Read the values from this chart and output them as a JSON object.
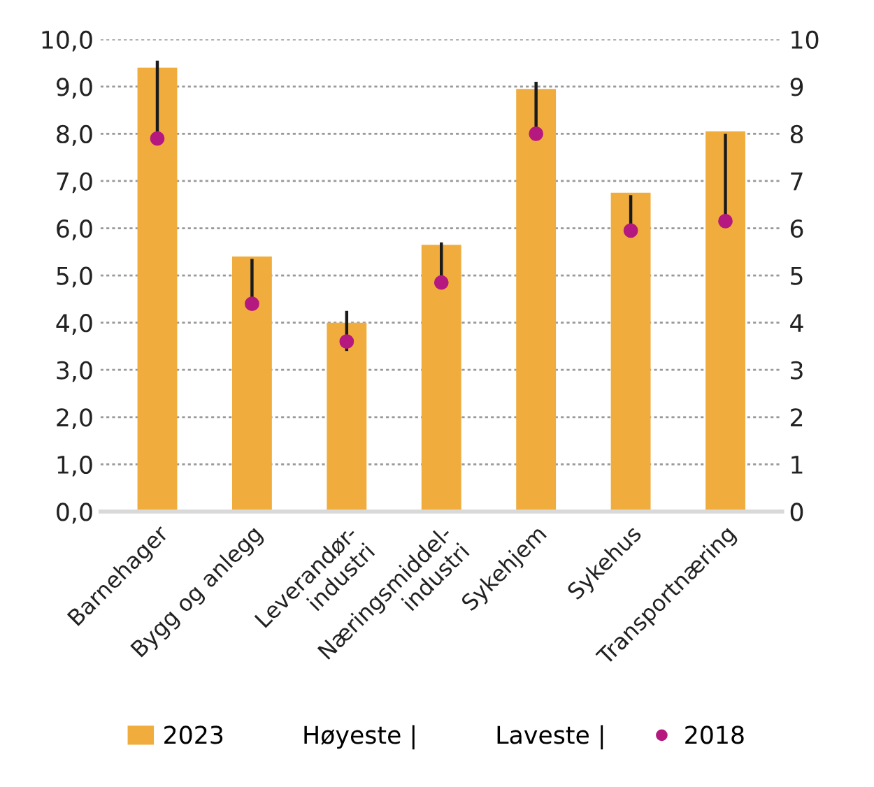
{
  "chart_data": {
    "type": "bar",
    "categories": [
      "Barnehager",
      "Bygg og anlegg",
      "Leverandør-\nindustri",
      "Næringsmiddel-\nindustri",
      "Sykehjem",
      "Sykehus",
      "Transportnæring"
    ],
    "series": [
      {
        "name": "2023",
        "color": "#f0ad3e",
        "values": [
          9.4,
          5.4,
          4.0,
          5.65,
          8.95,
          6.75,
          8.05
        ]
      },
      {
        "name": "2018",
        "type": "scatter",
        "color": "#b5197f",
        "marker": "circle",
        "values": [
          7.9,
          4.4,
          3.6,
          4.85,
          8.0,
          5.95,
          6.15
        ],
        "errors": [
          [
            7.9,
            9.55
          ],
          [
            4.4,
            5.35
          ],
          [
            3.4,
            4.25
          ],
          [
            4.85,
            5.7
          ],
          [
            8.0,
            9.1
          ],
          [
            5.95,
            6.7
          ],
          [
            6.15,
            8.0
          ]
        ]
      }
    ],
    "annotations": [
      "Høyeste |",
      "Laveste |"
    ],
    "ylim": [
      0,
      10
    ],
    "yticks": [
      {
        "value": 0,
        "label": "0,0"
      },
      {
        "value": 1,
        "label": "1,0"
      },
      {
        "value": 2,
        "label": "2,0"
      },
      {
        "value": 3,
        "label": "3,0"
      },
      {
        "value": 4,
        "label": "4,0"
      },
      {
        "value": 5,
        "label": "5,0"
      },
      {
        "value": 6,
        "label": "6,0"
      },
      {
        "value": 7,
        "label": "7,0"
      },
      {
        "value": 8,
        "label": "8,0"
      },
      {
        "value": 9,
        "label": "9,0"
      },
      {
        "value": 10,
        "label": "10,0"
      }
    ],
    "y2lim": [
      0,
      10
    ],
    "y2ticks": [
      0,
      1,
      2,
      3,
      4,
      5,
      6,
      7,
      8,
      9,
      10
    ],
    "grid": "y",
    "legend": "bottom"
  }
}
